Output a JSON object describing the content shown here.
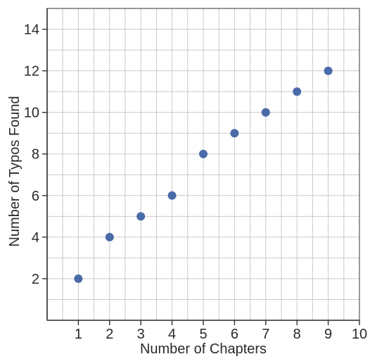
{
  "chart_data": {
    "type": "scatter",
    "title": "",
    "xlabel": "Number of Chapters",
    "ylabel": "Number of Typos Found",
    "xlim": [
      0,
      10
    ],
    "ylim": [
      0,
      15
    ],
    "x_ticks": [
      1,
      2,
      3,
      4,
      5,
      6,
      7,
      8,
      9,
      10
    ],
    "y_ticks": [
      2,
      4,
      6,
      8,
      10,
      12,
      14
    ],
    "x_minor_step": 0.5,
    "y_minor_step": 1,
    "grid": true,
    "legend": "none",
    "marker_color": "#4a6aa8",
    "points": [
      {
        "x": 1,
        "y": 2
      },
      {
        "x": 2,
        "y": 4
      },
      {
        "x": 3,
        "y": 5
      },
      {
        "x": 4,
        "y": 6
      },
      {
        "x": 5,
        "y": 8
      },
      {
        "x": 6,
        "y": 9
      },
      {
        "x": 7,
        "y": 10
      },
      {
        "x": 8,
        "y": 11
      },
      {
        "x": 9,
        "y": 12
      }
    ]
  }
}
